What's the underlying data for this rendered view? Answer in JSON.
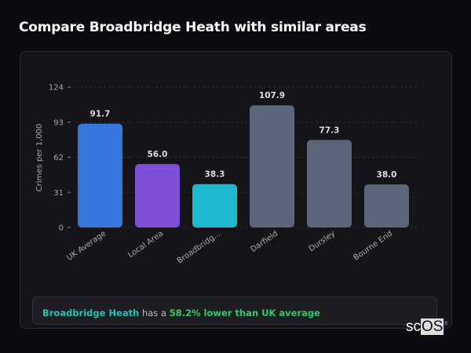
{
  "header": {
    "title": "Compare Broadbridge Heath with similar areas"
  },
  "chart_data": {
    "type": "bar",
    "categories": [
      "UK Average",
      "Local Area",
      "Broadbridg...",
      "Darfield",
      "Dursley",
      "Bourne End"
    ],
    "values": [
      91.7,
      56.0,
      38.3,
      107.9,
      77.3,
      38.0
    ],
    "data_labels": [
      "91.7",
      "56.0",
      "38.3",
      "107.9",
      "77.3",
      "38.0"
    ],
    "colors": [
      "#3577db",
      "#7b4fd6",
      "#20b8d0",
      "#5b6678",
      "#5b6678",
      "#5b6678"
    ],
    "ylabel": "Crimes per 1,000",
    "xlabel": "",
    "ylim": [
      0,
      124
    ],
    "yticks": [
      0,
      31,
      62,
      93,
      124
    ],
    "grid": true
  },
  "summary": {
    "area": "Broadbridge Heath",
    "connector": "has a",
    "comparison": "58.2% lower than UK average"
  },
  "logo": {
    "text_a": "sc",
    "text_b": "OS",
    "mark": "®"
  }
}
